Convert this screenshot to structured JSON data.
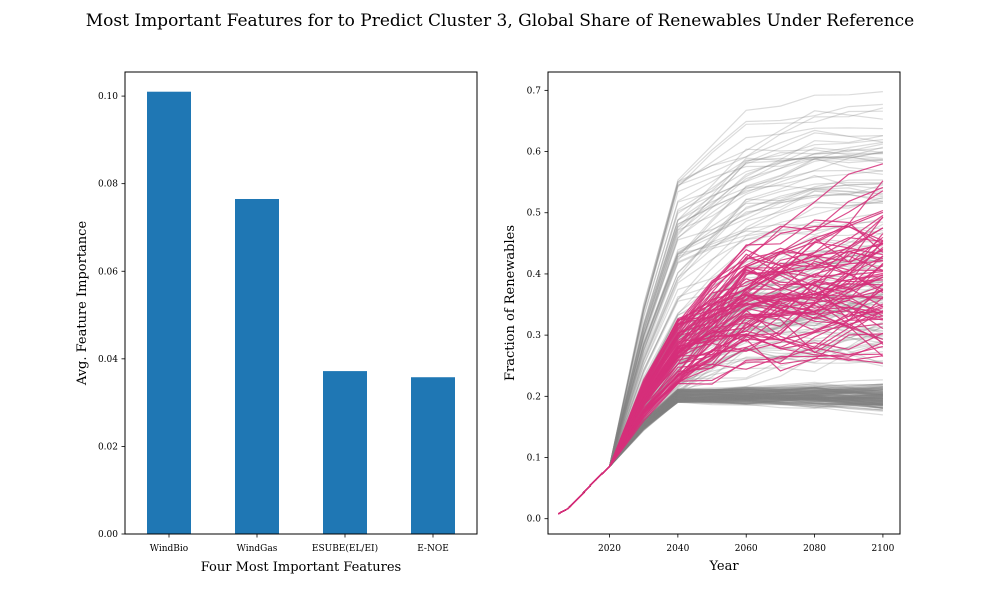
{
  "figure": {
    "title": "Most Important Features for to Predict Cluster 3, Global Share of Renewables Under Reference"
  },
  "chart_data": [
    {
      "type": "bar",
      "categories": [
        "WindBio",
        "WindGas",
        "ESUBE(EL/EI)",
        "E-NOE"
      ],
      "values": [
        0.101,
        0.0765,
        0.0372,
        0.0358
      ],
      "xlabel": "Four Most Important Features",
      "ylabel": "Avg. Feature Importance",
      "ylim": [
        0,
        0.1055
      ],
      "yticks": [
        0.0,
        0.02,
        0.04,
        0.06,
        0.08,
        0.1
      ],
      "ytick_labels": [
        "0.00",
        "0.02",
        "0.04",
        "0.06",
        "0.08",
        "0.10"
      ],
      "bar_color": "#1f77b4",
      "grid": false
    },
    {
      "type": "line",
      "xlabel": "Year",
      "ylabel": "Fraction of Renewables",
      "xlim": [
        2002,
        2105
      ],
      "ylim": [
        -0.025,
        0.73
      ],
      "xticks": [
        2020,
        2040,
        2060,
        2080,
        2100
      ],
      "xtick_labels": [
        "2020",
        "2040",
        "2060",
        "2080",
        "2100"
      ],
      "yticks": [
        0.0,
        0.1,
        0.2,
        0.3,
        0.4,
        0.5,
        0.6,
        0.7
      ],
      "ytick_labels": [
        "0.0",
        "0.1",
        "0.2",
        "0.3",
        "0.4",
        "0.5",
        "0.6",
        "0.7"
      ],
      "years": [
        2005,
        2010,
        2015,
        2020,
        2025,
        2030,
        2035,
        2040,
        2045,
        2050,
        2055,
        2060,
        2065,
        2070,
        2075,
        2080,
        2085,
        2090,
        2095,
        2100
      ],
      "grid": false,
      "series": [
        {
          "group": "other",
          "color": "#808080",
          "count": 300,
          "values_2100_range": [
            0.17,
            0.695
          ]
        },
        {
          "group": "cluster-3",
          "color": "#d62f7a",
          "count": 80,
          "values_2100_range": [
            0.25,
            0.58
          ]
        }
      ],
      "envelope": {
        "years": [
          2005,
          2020,
          2040,
          2060,
          2080,
          2100
        ],
        "upper": [
          0.01,
          0.085,
          0.57,
          0.68,
          0.695,
          0.695
        ],
        "lower": [
          0.01,
          0.085,
          0.19,
          0.185,
          0.18,
          0.17
        ]
      }
    }
  ]
}
